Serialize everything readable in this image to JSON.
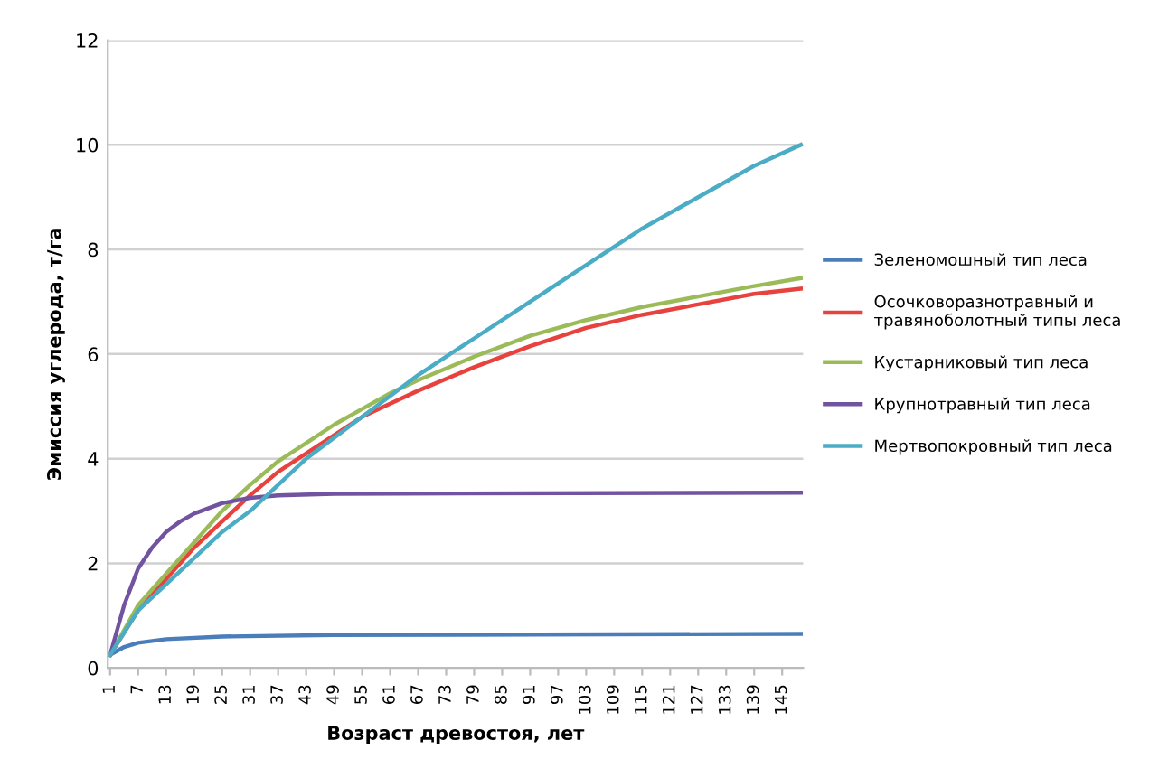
{
  "chart_data": {
    "type": "line",
    "xlabel": "Возраст древостоя, лет",
    "ylabel": "Эмиссия углерода, т/га",
    "xlim": [
      0.5,
      149.5
    ],
    "xticks": [
      1,
      7,
      13,
      19,
      25,
      31,
      37,
      43,
      49,
      55,
      61,
      67,
      73,
      79,
      85,
      91,
      97,
      103,
      109,
      115,
      121,
      127,
      133,
      139,
      145
    ],
    "ylim": [
      0,
      12
    ],
    "yticks": [
      0,
      2,
      4,
      6,
      8,
      10,
      12
    ],
    "grid": "y",
    "legend": "right",
    "marker": "none",
    "line_style": "solid",
    "series": [
      {
        "name": "Зеленомошный тип леса",
        "color": "#4a7ebb",
        "x": [
          1,
          4,
          7,
          13,
          25,
          49,
          149
        ],
        "values": [
          0.25,
          0.4,
          0.48,
          0.55,
          0.6,
          0.63,
          0.65
        ]
      },
      {
        "name": "Осочковоразнотравный и травяноболотный типы леса",
        "color": "#e8423f",
        "x": [
          1,
          7,
          13,
          19,
          25,
          31,
          37,
          43,
          49,
          55,
          61,
          67,
          79,
          91,
          103,
          115,
          127,
          139,
          149
        ],
        "values": [
          0.25,
          1.1,
          1.7,
          2.3,
          2.8,
          3.3,
          3.75,
          4.1,
          4.45,
          4.8,
          5.05,
          5.3,
          5.75,
          6.15,
          6.5,
          6.75,
          6.95,
          7.15,
          7.25
        ]
      },
      {
        "name": "Кустарниковый тип леса",
        "color": "#9bbb59",
        "x": [
          1,
          7,
          13,
          19,
          25,
          31,
          37,
          43,
          49,
          55,
          61,
          67,
          79,
          91,
          103,
          115,
          127,
          139,
          149
        ],
        "values": [
          0.25,
          1.2,
          1.8,
          2.4,
          3.0,
          3.5,
          3.95,
          4.3,
          4.65,
          4.95,
          5.25,
          5.5,
          5.95,
          6.35,
          6.65,
          6.9,
          7.1,
          7.3,
          7.45
        ]
      },
      {
        "name": "Крупнотравный тип леса",
        "color": "#7153a0",
        "x": [
          1,
          4,
          7,
          10,
          13,
          16,
          19,
          25,
          31,
          37,
          49,
          149
        ],
        "values": [
          0.25,
          1.2,
          1.9,
          2.3,
          2.6,
          2.8,
          2.95,
          3.15,
          3.25,
          3.3,
          3.33,
          3.35
        ]
      },
      {
        "name": "Мертвопокровный тип леса",
        "color": "#4bacc6",
        "x": [
          1,
          7,
          13,
          19,
          25,
          31,
          37,
          43,
          49,
          55,
          61,
          67,
          79,
          91,
          103,
          115,
          127,
          139,
          149
        ],
        "values": [
          0.25,
          1.1,
          1.6,
          2.1,
          2.6,
          3.0,
          3.5,
          4.0,
          4.4,
          4.8,
          5.2,
          5.6,
          6.3,
          7.0,
          7.7,
          8.4,
          9.0,
          9.6,
          10.0
        ]
      }
    ]
  }
}
